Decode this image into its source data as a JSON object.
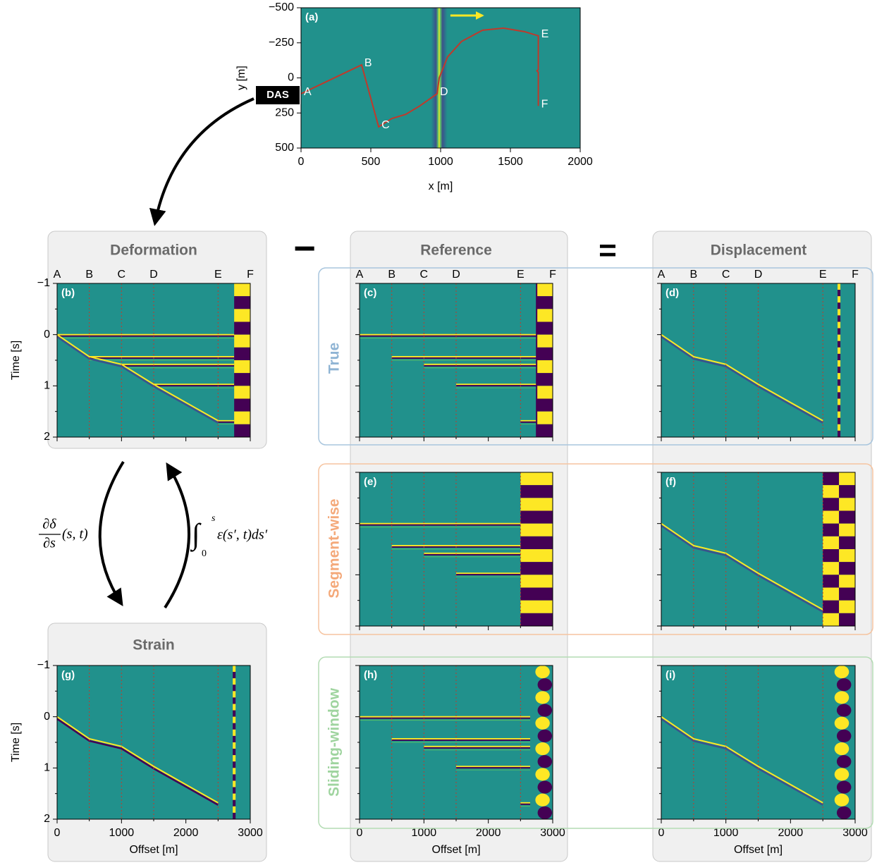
{
  "labels": {
    "deformation": "Deformation",
    "reference": "Reference",
    "displacement": "Displacement",
    "strain": "Strain",
    "minus": "−",
    "equals": "=",
    "true": "True",
    "segment": "Segment-wise",
    "sliding": "Sliding-window",
    "das": "DAS"
  },
  "equations": {
    "derivative": {
      "numerator": "∂δ",
      "denominator": "∂s",
      "argument": "(s, t)"
    },
    "integral": {
      "sign": "∫",
      "lower": "0",
      "upper": "s",
      "integrand": "ε(s′, t)ds′"
    }
  },
  "markers": {
    "labels": [
      "A",
      "B",
      "C",
      "D",
      "E",
      "F"
    ],
    "offsets": [
      0,
      500,
      1000,
      1500,
      2500,
      3000
    ]
  },
  "chart_data": [
    {
      "type": "map",
      "panel_label": "(a)",
      "xlabel": "x [m]",
      "ylabel": "y [m]",
      "xlim": [
        0,
        2000
      ],
      "ylim": [
        500,
        -500
      ],
      "xticks": [
        0,
        500,
        1000,
        1500,
        2000
      ],
      "yticks": [
        {
          "value": -500,
          "label": "−500"
        },
        {
          "value": -250,
          "label": "−250"
        },
        0,
        250,
        500
      ],
      "path": {
        "color": "#c0392b",
        "x": [
          0,
          434,
          556,
          650,
          750,
          850,
          975,
          990,
          1050,
          1150,
          1300,
          1450,
          1600,
          1700,
          1700,
          1690,
          1700,
          1700
        ],
        "y": [
          113,
          -93,
          349,
          290,
          260,
          200,
          113,
          0,
          -150,
          -260,
          -340,
          -355,
          -330,
          -300,
          -60,
          -50,
          -40,
          200
        ]
      },
      "points": {
        "labels": [
          "A",
          "B",
          "C",
          "D",
          "E",
          "F"
        ],
        "x": [
          0,
          434,
          556,
          975,
          1700,
          1700
        ],
        "y": [
          113,
          -93,
          349,
          113,
          -300,
          200
        ]
      }
    },
    {
      "type": "image",
      "panel_label": "(b)",
      "ylabel": "Time [s]",
      "marker_labels": true,
      "ytick_labels": true,
      "xlim": [
        0,
        3000
      ],
      "ylim": [
        2,
        -1
      ],
      "xticks": [
        0,
        1000,
        2000,
        3000
      ],
      "yticks": [
        {
          "value": -1,
          "label": "−1"
        },
        0,
        1,
        2
      ]
    },
    {
      "type": "image",
      "panel_label": "(c)",
      "marker_labels": true,
      "xlim": [
        0,
        3000
      ],
      "ylim": [
        2,
        -1
      ],
      "xticks": [
        0,
        1000,
        2000,
        3000
      ],
      "yticks": [
        {
          "value": -1,
          "label": "−1"
        },
        0,
        1,
        2
      ]
    },
    {
      "type": "image",
      "panel_label": "(d)",
      "marker_labels": true,
      "xlim": [
        0,
        3000
      ],
      "ylim": [
        2,
        -1
      ],
      "xticks": [
        0,
        1000,
        2000,
        3000
      ],
      "yticks": [
        {
          "value": -1,
          "label": "−1"
        },
        0,
        1,
        2
      ]
    },
    {
      "type": "image",
      "panel_label": "(e)",
      "xlim": [
        0,
        3000
      ],
      "ylim": [
        2,
        -1
      ],
      "xticks": [
        0,
        1000,
        2000,
        3000
      ],
      "yticks": [
        {
          "value": -1,
          "label": "−1"
        },
        0,
        1,
        2
      ]
    },
    {
      "type": "image",
      "panel_label": "(f)",
      "xlim": [
        0,
        3000
      ],
      "ylim": [
        2,
        -1
      ],
      "xticks": [
        0,
        1000,
        2000,
        3000
      ],
      "yticks": [
        {
          "value": -1,
          "label": "−1"
        },
        0,
        1,
        2
      ]
    },
    {
      "type": "image",
      "panel_label": "(g)",
      "ylabel": "Time [s]",
      "xlabel": "Offset [m]",
      "ytick_labels": true,
      "xtick_labels": true,
      "xlim": [
        0,
        3000
      ],
      "ylim": [
        2,
        -1
      ],
      "xticks": [
        0,
        1000,
        2000,
        3000
      ],
      "yticks": [
        {
          "value": -1,
          "label": "−1"
        },
        0,
        1,
        2
      ]
    },
    {
      "type": "image",
      "panel_label": "(h)",
      "xlabel": "Offset [m]",
      "xtick_labels": true,
      "xlim": [
        0,
        3000
      ],
      "ylim": [
        2,
        -1
      ],
      "xticks": [
        0,
        1000,
        2000,
        3000
      ],
      "yticks": [
        {
          "value": -1,
          "label": "−1"
        },
        0,
        1,
        2
      ]
    },
    {
      "type": "image",
      "panel_label": "(i)",
      "xlabel": "Offset [m]",
      "xtick_labels": true,
      "xlim": [
        0,
        3000
      ],
      "ylim": [
        2,
        -1
      ],
      "xticks": [
        0,
        1000,
        2000,
        3000
      ],
      "yticks": [
        {
          "value": -1,
          "label": "−1"
        },
        0,
        1,
        2
      ]
    }
  ]
}
